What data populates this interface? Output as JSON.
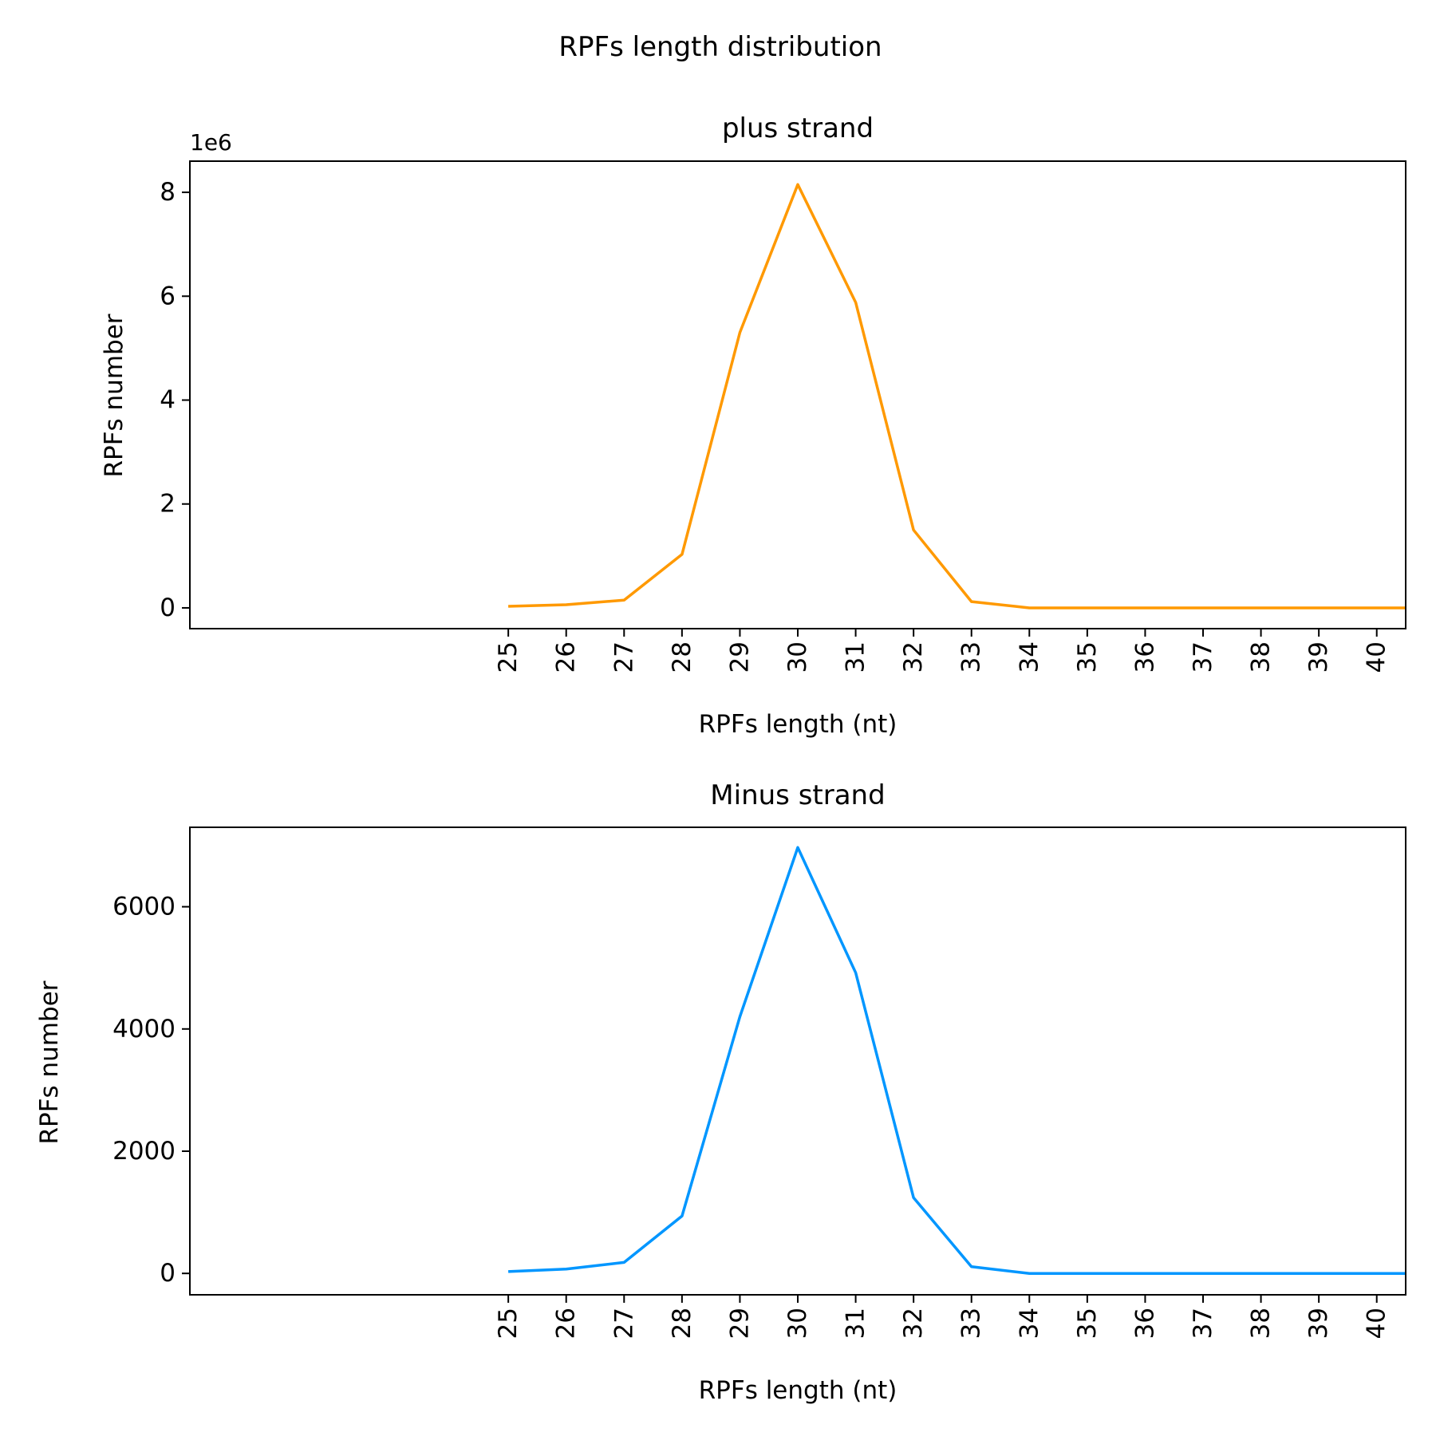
{
  "figure": {
    "title": "RPFs length distribution"
  },
  "chart_data": [
    {
      "type": "line",
      "title": "plus strand",
      "xlabel": "RPFs length (nt)",
      "ylabel": "RPFs number",
      "ytick_scale_label": "1e6",
      "xlim": [
        19.5,
        40.5
      ],
      "ylim": [
        -0.4,
        8.6
      ],
      "x_ticks": [
        25,
        26,
        27,
        28,
        29,
        30,
        31,
        32,
        33,
        34,
        35,
        36,
        37,
        38,
        39,
        40
      ],
      "y_ticks": [
        0,
        2,
        4,
        6,
        8
      ],
      "y_tick_labels": [
        "0",
        "2",
        "4",
        "6",
        "8"
      ],
      "grid": false,
      "series": [
        {
          "color": "#ff9900",
          "x": [
            25,
            26,
            27,
            28,
            29,
            30,
            31,
            32,
            33,
            34,
            35,
            36,
            37,
            38,
            39,
            40,
            40.5
          ],
          "values": [
            0.03,
            0.06,
            0.15,
            1.03,
            5.3,
            8.15,
            5.88,
            1.5,
            0.12,
            0.0,
            0.0,
            0.0,
            0.0,
            0.0,
            0.0,
            0.0,
            0.0
          ]
        }
      ]
    },
    {
      "type": "line",
      "title": "Minus strand",
      "xlabel": "RPFs length (nt)",
      "ylabel": "RPFs number",
      "xlim": [
        19.5,
        40.5
      ],
      "ylim": [
        -350,
        7300
      ],
      "x_ticks": [
        25,
        26,
        27,
        28,
        29,
        30,
        31,
        32,
        33,
        34,
        35,
        36,
        37,
        38,
        39,
        40
      ],
      "y_ticks": [
        0,
        2000,
        4000,
        6000
      ],
      "y_tick_labels": [
        "0",
        "2000",
        "4000",
        "6000"
      ],
      "grid": false,
      "series": [
        {
          "color": "#0096ff",
          "x": [
            25,
            26,
            27,
            28,
            29,
            30,
            31,
            32,
            33,
            34,
            35,
            36,
            37,
            38,
            39,
            40,
            40.5
          ],
          "values": [
            30,
            70,
            180,
            940,
            4200,
            6970,
            4920,
            1240,
            110,
            0,
            0,
            0,
            0,
            0,
            0,
            0,
            0
          ]
        }
      ]
    }
  ]
}
